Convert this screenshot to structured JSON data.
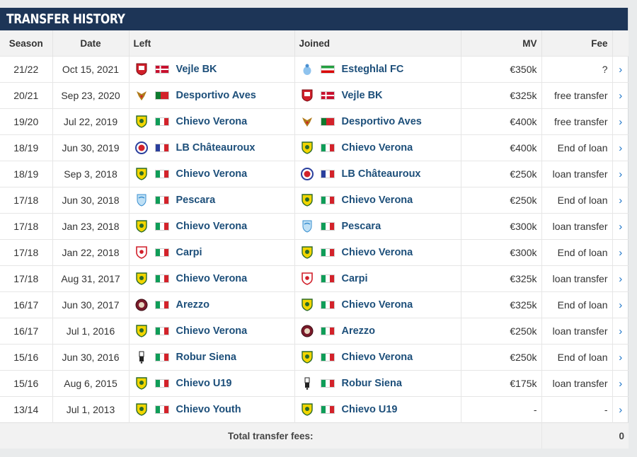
{
  "header": {
    "title": "TRANSFER HISTORY"
  },
  "columns": {
    "season": "Season",
    "date": "Date",
    "left": "Left",
    "joined": "Joined",
    "mv": "MV",
    "fee": "Fee"
  },
  "rows": [
    {
      "season": "21/22",
      "date": "Oct 15, 2021",
      "left": {
        "club": "Vejle BK",
        "country": "denmark",
        "crest": "vejle-crest-icon"
      },
      "joined": {
        "club": "Esteghlal FC",
        "country": "iran",
        "crest": "esteghlal-crest-icon"
      },
      "mv": "€350k",
      "fee": "?"
    },
    {
      "season": "20/21",
      "date": "Sep 23, 2020",
      "left": {
        "club": "Desportivo Aves",
        "country": "portugal",
        "crest": "aves-crest-icon"
      },
      "joined": {
        "club": "Vejle BK",
        "country": "denmark",
        "crest": "vejle-crest-icon"
      },
      "mv": "€325k",
      "fee": "free transfer"
    },
    {
      "season": "19/20",
      "date": "Jul 22, 2019",
      "left": {
        "club": "Chievo Verona",
        "country": "italy",
        "crest": "chievo-crest-icon"
      },
      "joined": {
        "club": "Desportivo Aves",
        "country": "portugal",
        "crest": "aves-crest-icon"
      },
      "mv": "€400k",
      "fee": "free transfer"
    },
    {
      "season": "18/19",
      "date": "Jun 30, 2019",
      "left": {
        "club": "LB Châteauroux",
        "country": "france",
        "crest": "chateauroux-crest-icon"
      },
      "joined": {
        "club": "Chievo Verona",
        "country": "italy",
        "crest": "chievo-crest-icon"
      },
      "mv": "€400k",
      "fee": "End of loan"
    },
    {
      "season": "18/19",
      "date": "Sep 3, 2018",
      "left": {
        "club": "Chievo Verona",
        "country": "italy",
        "crest": "chievo-crest-icon"
      },
      "joined": {
        "club": "LB Châteauroux",
        "country": "france",
        "crest": "chateauroux-crest-icon"
      },
      "mv": "€250k",
      "fee": "loan transfer"
    },
    {
      "season": "17/18",
      "date": "Jun 30, 2018",
      "left": {
        "club": "Pescara",
        "country": "italy",
        "crest": "pescara-crest-icon"
      },
      "joined": {
        "club": "Chievo Verona",
        "country": "italy",
        "crest": "chievo-crest-icon"
      },
      "mv": "€250k",
      "fee": "End of loan"
    },
    {
      "season": "17/18",
      "date": "Jan 23, 2018",
      "left": {
        "club": "Chievo Verona",
        "country": "italy",
        "crest": "chievo-crest-icon"
      },
      "joined": {
        "club": "Pescara",
        "country": "italy",
        "crest": "pescara-crest-icon"
      },
      "mv": "€300k",
      "fee": "loan transfer"
    },
    {
      "season": "17/18",
      "date": "Jan 22, 2018",
      "left": {
        "club": "Carpi",
        "country": "italy",
        "crest": "carpi-crest-icon"
      },
      "joined": {
        "club": "Chievo Verona",
        "country": "italy",
        "crest": "chievo-crest-icon"
      },
      "mv": "€300k",
      "fee": "End of loan"
    },
    {
      "season": "17/18",
      "date": "Aug 31, 2017",
      "left": {
        "club": "Chievo Verona",
        "country": "italy",
        "crest": "chievo-crest-icon"
      },
      "joined": {
        "club": "Carpi",
        "country": "italy",
        "crest": "carpi-crest-icon"
      },
      "mv": "€325k",
      "fee": "loan transfer"
    },
    {
      "season": "16/17",
      "date": "Jun 30, 2017",
      "left": {
        "club": "Arezzo",
        "country": "italy",
        "crest": "arezzo-crest-icon"
      },
      "joined": {
        "club": "Chievo Verona",
        "country": "italy",
        "crest": "chievo-crest-icon"
      },
      "mv": "€325k",
      "fee": "End of loan"
    },
    {
      "season": "16/17",
      "date": "Jul 1, 2016",
      "left": {
        "club": "Chievo Verona",
        "country": "italy",
        "crest": "chievo-crest-icon"
      },
      "joined": {
        "club": "Arezzo",
        "country": "italy",
        "crest": "arezzo-crest-icon"
      },
      "mv": "€250k",
      "fee": "loan transfer"
    },
    {
      "season": "15/16",
      "date": "Jun 30, 2016",
      "left": {
        "club": "Robur Siena",
        "country": "italy",
        "crest": "siena-crest-icon"
      },
      "joined": {
        "club": "Chievo Verona",
        "country": "italy",
        "crest": "chievo-crest-icon"
      },
      "mv": "€250k",
      "fee": "End of loan"
    },
    {
      "season": "15/16",
      "date": "Aug 6, 2015",
      "left": {
        "club": "Chievo U19",
        "country": "italy",
        "crest": "chievo-crest-icon"
      },
      "joined": {
        "club": "Robur Siena",
        "country": "italy",
        "crest": "siena-crest-icon"
      },
      "mv": "€175k",
      "fee": "loan transfer"
    },
    {
      "season": "13/14",
      "date": "Jul 1, 2013",
      "left": {
        "club": "Chievo Youth",
        "country": "italy",
        "crest": "chievo-crest-icon"
      },
      "joined": {
        "club": "Chievo U19",
        "country": "italy",
        "crest": "chievo-crest-icon"
      },
      "mv": "-",
      "fee": "-"
    }
  ],
  "footer": {
    "total_label": "Total transfer fees:",
    "total_value": "0"
  },
  "colors": {
    "header_bg": "#1d3557",
    "club_link": "#1d4f7a",
    "arrow": "#1a73c8"
  },
  "icons": {
    "row_arrow": "chevron-right-icon"
  }
}
